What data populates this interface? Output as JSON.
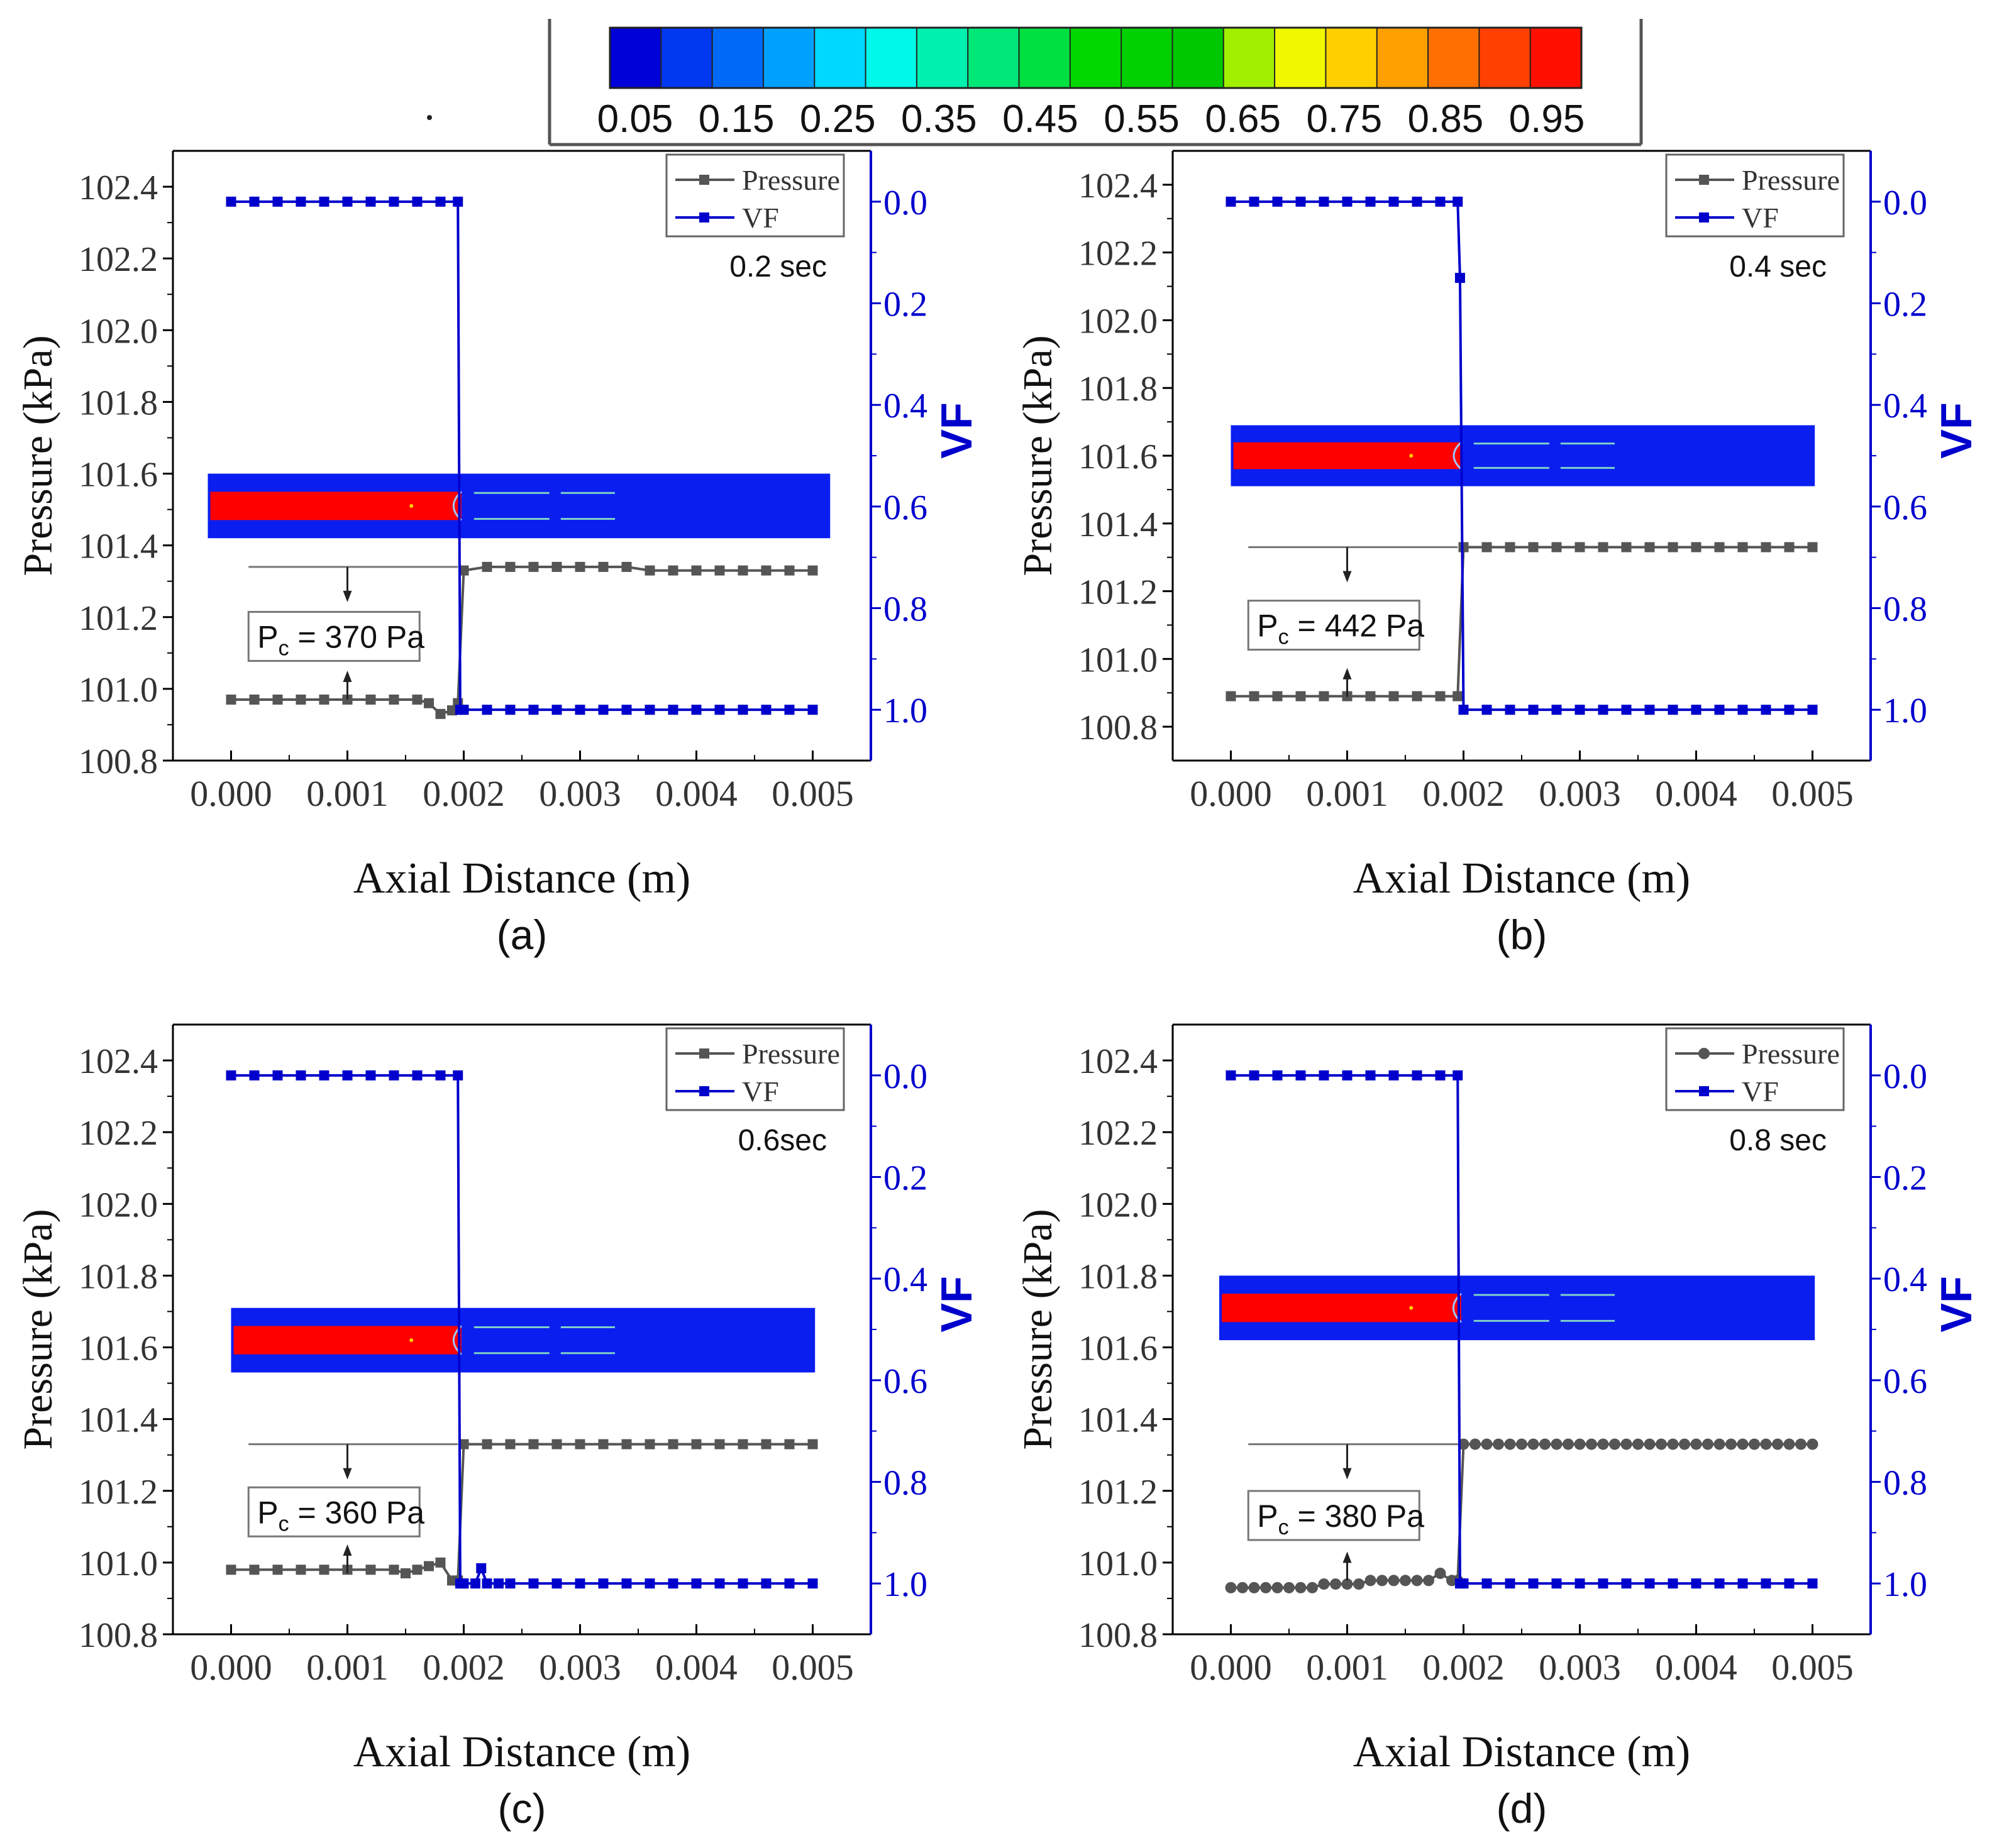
{
  "colorbar": {
    "labels": [
      "0.05",
      "0.15",
      "0.25",
      "0.35",
      "0.45",
      "0.55",
      "0.65",
      "0.75",
      "0.85",
      "0.95"
    ],
    "colors": [
      "#0000d8",
      "#0038f0",
      "#006af8",
      "#00a0ff",
      "#00d8ff",
      "#00f8e8",
      "#00f0b0",
      "#00e878",
      "#00e040",
      "#00d800",
      "#00d000",
      "#00c800",
      "#a0f000",
      "#f0f800",
      "#ffd000",
      "#ffa000",
      "#ff7000",
      "#ff4000",
      "#ff1000"
    ]
  },
  "colors": {
    "pressure": "#555555",
    "vf": "#0000cc",
    "liquid": "#0a1ef0",
    "vapor": "#ff0000",
    "axis": "#000000"
  },
  "chart_data": [
    {
      "type": "line",
      "panel_label": "(a)",
      "time_label": "0.2 sec",
      "xlabel": "Axial Distance (m)",
      "ylabel": "Pressure (kPa)",
      "y2label": "VF",
      "xlim": [
        -0.0005,
        0.0055
      ],
      "ylim": [
        100.8,
        102.5
      ],
      "y2lim": [
        -0.1,
        1.1
      ],
      "x_ticks": [
        "0.000",
        "0.001",
        "0.002",
        "0.003",
        "0.004",
        "0.005"
      ],
      "y_ticks": [
        "100.8",
        "101.0",
        "101.2",
        "101.4",
        "101.6",
        "101.8",
        "102.0",
        "102.2",
        "102.4"
      ],
      "y2_ticks": [
        "0.0",
        "0.2",
        "0.4",
        "0.6",
        "0.8",
        "1.0"
      ],
      "legend": [
        "Pressure",
        "VF"
      ],
      "marker": "square",
      "annotation": {
        "prefix": "P",
        "subscript": "c",
        "suffix": " = 370 Pa"
      },
      "pc_kpa": 0.37,
      "inset": {
        "y_center": 101.51,
        "height_kpa": 0.18,
        "x_start": -0.0002,
        "x_end": 0.00515
      },
      "series": [
        {
          "name": "Pressure",
          "x": [
            0,
            0.0002,
            0.0004,
            0.0006,
            0.0008,
            0.001,
            0.0012,
            0.0014,
            0.0016,
            0.0017,
            0.0018,
            0.0019,
            0.00195,
            0.002,
            0.0022,
            0.0024,
            0.0026,
            0.0028,
            0.003,
            0.0032,
            0.0034,
            0.0036,
            0.0038,
            0.004,
            0.0042,
            0.0044,
            0.0046,
            0.0048,
            0.005
          ],
          "values": [
            100.97,
            100.97,
            100.97,
            100.97,
            100.97,
            100.97,
            100.97,
            100.97,
            100.97,
            100.96,
            100.93,
            100.94,
            100.96,
            101.33,
            101.34,
            101.34,
            101.34,
            101.34,
            101.34,
            101.34,
            101.34,
            101.33,
            101.33,
            101.33,
            101.33,
            101.33,
            101.33,
            101.33,
            101.33
          ]
        },
        {
          "name": "VF",
          "x": [
            0,
            0.0002,
            0.0004,
            0.0006,
            0.0008,
            0.001,
            0.0012,
            0.0014,
            0.0016,
            0.0018,
            0.00195,
            0.00197,
            0.002,
            0.0022,
            0.0024,
            0.0026,
            0.0028,
            0.003,
            0.0032,
            0.0034,
            0.0036,
            0.0038,
            0.004,
            0.0042,
            0.0044,
            0.0046,
            0.0048,
            0.005
          ],
          "values": [
            0,
            0,
            0,
            0,
            0,
            0,
            0,
            0,
            0,
            0,
            0,
            1,
            1,
            1,
            1,
            1,
            1,
            1,
            1,
            1,
            1,
            1,
            1,
            1,
            1,
            1,
            1,
            1
          ]
        }
      ]
    },
    {
      "type": "line",
      "panel_label": "(b)",
      "time_label": "0.4 sec",
      "xlabel": "Axial Distance (m)",
      "ylabel": "Pressure (kPa)",
      "y2label": "VF",
      "xlim": [
        -0.0005,
        0.0055
      ],
      "ylim": [
        100.7,
        102.5
      ],
      "y2lim": [
        -0.1,
        1.1
      ],
      "x_ticks": [
        "0.000",
        "0.001",
        "0.002",
        "0.003",
        "0.004",
        "0.005"
      ],
      "y_ticks": [
        "100.8",
        "101.0",
        "101.2",
        "101.4",
        "101.6",
        "101.8",
        "102.0",
        "102.2",
        "102.4"
      ],
      "y2_ticks": [
        "0.0",
        "0.2",
        "0.4",
        "0.6",
        "0.8",
        "1.0"
      ],
      "legend": [
        "Pressure",
        "VF"
      ],
      "marker": "square",
      "annotation": {
        "prefix": "P",
        "subscript": "c",
        "suffix": " = 442 Pa"
      },
      "pc_kpa": 0.442,
      "inset": {
        "y_center": 101.6,
        "height_kpa": 0.18,
        "x_start": 0.0,
        "x_end": 0.00502
      },
      "series": [
        {
          "name": "Pressure",
          "x": [
            0,
            0.0002,
            0.0004,
            0.0006,
            0.0008,
            0.001,
            0.0012,
            0.0014,
            0.0016,
            0.0018,
            0.00195,
            0.002,
            0.0022,
            0.0024,
            0.0026,
            0.0028,
            0.003,
            0.0032,
            0.0034,
            0.0036,
            0.0038,
            0.004,
            0.0042,
            0.0044,
            0.0046,
            0.0048,
            0.005
          ],
          "values": [
            100.89,
            100.89,
            100.89,
            100.89,
            100.89,
            100.89,
            100.89,
            100.89,
            100.89,
            100.89,
            100.89,
            101.33,
            101.33,
            101.33,
            101.33,
            101.33,
            101.33,
            101.33,
            101.33,
            101.33,
            101.33,
            101.33,
            101.33,
            101.33,
            101.33,
            101.33,
            101.33
          ]
        },
        {
          "name": "VF",
          "x": [
            0,
            0.0002,
            0.0004,
            0.0006,
            0.0008,
            0.001,
            0.0012,
            0.0014,
            0.0016,
            0.0018,
            0.00195,
            0.00197,
            0.002,
            0.0022,
            0.0024,
            0.0026,
            0.0028,
            0.003,
            0.0032,
            0.0034,
            0.0036,
            0.0038,
            0.004,
            0.0042,
            0.0044,
            0.0046,
            0.0048,
            0.005
          ],
          "values": [
            0,
            0,
            0,
            0,
            0,
            0,
            0,
            0,
            0,
            0,
            0,
            0.15,
            1,
            1,
            1,
            1,
            1,
            1,
            1,
            1,
            1,
            1,
            1,
            1,
            1,
            1,
            1,
            1
          ]
        }
      ]
    },
    {
      "type": "line",
      "panel_label": "(c)",
      "time_label": "0.6sec",
      "xlabel": "Axial Distance (m)",
      "ylabel": "Pressure (kPa)",
      "y2label": "VF",
      "xlim": [
        -0.0005,
        0.0055
      ],
      "ylim": [
        100.8,
        102.5
      ],
      "y2lim": [
        -0.1,
        1.1
      ],
      "x_ticks": [
        "0.000",
        "0.001",
        "0.002",
        "0.003",
        "0.004",
        "0.005"
      ],
      "y_ticks": [
        "100.8",
        "101.0",
        "101.2",
        "101.4",
        "101.6",
        "101.8",
        "102.0",
        "102.2",
        "102.4"
      ],
      "y2_ticks": [
        "0.0",
        "0.2",
        "0.4",
        "0.6",
        "0.8",
        "1.0"
      ],
      "legend": [
        "Pressure",
        "VF"
      ],
      "marker": "square",
      "annotation": {
        "prefix": "P",
        "subscript": "c",
        "suffix": " = 360 Pa"
      },
      "pc_kpa": 0.36,
      "inset": {
        "y_center": 101.62,
        "height_kpa": 0.18,
        "x_start": 0.0,
        "x_end": 0.00502
      },
      "series": [
        {
          "name": "Pressure",
          "x": [
            0,
            0.0002,
            0.0004,
            0.0006,
            0.0008,
            0.001,
            0.0012,
            0.0014,
            0.0015,
            0.0016,
            0.0017,
            0.0018,
            0.0019,
            0.00195,
            0.002,
            0.0022,
            0.0024,
            0.0026,
            0.0028,
            0.003,
            0.0032,
            0.0034,
            0.0036,
            0.0038,
            0.004,
            0.0042,
            0.0044,
            0.0046,
            0.0048,
            0.005
          ],
          "values": [
            100.98,
            100.98,
            100.98,
            100.98,
            100.98,
            100.98,
            100.98,
            100.98,
            100.97,
            100.98,
            100.99,
            101.0,
            100.95,
            100.95,
            101.33,
            101.33,
            101.33,
            101.33,
            101.33,
            101.33,
            101.33,
            101.33,
            101.33,
            101.33,
            101.33,
            101.33,
            101.33,
            101.33,
            101.33,
            101.33
          ]
        },
        {
          "name": "VF",
          "x": [
            0,
            0.0002,
            0.0004,
            0.0006,
            0.0008,
            0.001,
            0.0012,
            0.0014,
            0.0016,
            0.0018,
            0.00195,
            0.00197,
            0.002,
            0.0021,
            0.00215,
            0.0022,
            0.0023,
            0.0024,
            0.0026,
            0.0028,
            0.003,
            0.0032,
            0.0034,
            0.0036,
            0.0038,
            0.004,
            0.0042,
            0.0044,
            0.0046,
            0.0048,
            0.005
          ],
          "values": [
            0,
            0,
            0,
            0,
            0,
            0,
            0,
            0,
            0,
            0,
            0,
            1,
            1,
            1.0,
            0.97,
            1.0,
            1.0,
            1,
            1,
            1,
            1,
            1,
            1,
            1,
            1,
            1,
            1,
            1,
            1,
            1,
            1
          ]
        }
      ]
    },
    {
      "type": "line",
      "panel_label": "(d)",
      "time_label": "0.8 sec",
      "xlabel": "Axial Distance (m)",
      "ylabel": "Pressure (kPa)",
      "y2label": "VF",
      "xlim": [
        -0.0005,
        0.0055
      ],
      "ylim": [
        100.8,
        102.5
      ],
      "y2lim": [
        -0.1,
        1.1
      ],
      "x_ticks": [
        "0.000",
        "0.001",
        "0.002",
        "0.003",
        "0.004",
        "0.005"
      ],
      "y_ticks": [
        "100.8",
        "101.0",
        "101.2",
        "101.4",
        "101.6",
        "101.8",
        "102.0",
        "102.2",
        "102.4"
      ],
      "y2_ticks": [
        "0.0",
        "0.2",
        "0.4",
        "0.6",
        "0.8",
        "1.0"
      ],
      "legend": [
        "Pressure",
        "VF"
      ],
      "marker": "circle",
      "annotation": {
        "prefix": "P",
        "subscript": "c",
        "suffix": " = 380 Pa"
      },
      "pc_kpa": 0.38,
      "inset": {
        "y_center": 101.71,
        "height_kpa": 0.18,
        "x_start": -0.0001,
        "x_end": 0.00502
      },
      "series": [
        {
          "name": "Pressure",
          "x": [
            0,
            0.0001,
            0.0002,
            0.0003,
            0.0004,
            0.0005,
            0.0006,
            0.0007,
            0.0008,
            0.0009,
            0.001,
            0.0011,
            0.0012,
            0.0013,
            0.0014,
            0.0015,
            0.0016,
            0.0017,
            0.0018,
            0.0019,
            0.00195,
            0.002,
            0.0021,
            0.0022,
            0.0023,
            0.0024,
            0.0025,
            0.0026,
            0.0027,
            0.0028,
            0.0029,
            0.003,
            0.0031,
            0.0032,
            0.0033,
            0.0034,
            0.0035,
            0.0036,
            0.0037,
            0.0038,
            0.0039,
            0.004,
            0.0041,
            0.0042,
            0.0043,
            0.0044,
            0.0045,
            0.0046,
            0.0047,
            0.0048,
            0.0049,
            0.005
          ],
          "values": [
            100.93,
            100.93,
            100.93,
            100.93,
            100.93,
            100.93,
            100.93,
            100.93,
            100.94,
            100.94,
            100.94,
            100.94,
            100.95,
            100.95,
            100.95,
            100.95,
            100.95,
            100.95,
            100.97,
            100.95,
            100.95,
            101.33,
            101.33,
            101.33,
            101.33,
            101.33,
            101.33,
            101.33,
            101.33,
            101.33,
            101.33,
            101.33,
            101.33,
            101.33,
            101.33,
            101.33,
            101.33,
            101.33,
            101.33,
            101.33,
            101.33,
            101.33,
            101.33,
            101.33,
            101.33,
            101.33,
            101.33,
            101.33,
            101.33,
            101.33,
            101.33,
            101.33
          ]
        },
        {
          "name": "VF",
          "x": [
            0,
            0.0002,
            0.0004,
            0.0006,
            0.0008,
            0.001,
            0.0012,
            0.0014,
            0.0016,
            0.0018,
            0.00195,
            0.00197,
            0.002,
            0.0022,
            0.0024,
            0.0026,
            0.0028,
            0.003,
            0.0032,
            0.0034,
            0.0036,
            0.0038,
            0.004,
            0.0042,
            0.0044,
            0.0046,
            0.0048,
            0.005
          ],
          "values": [
            0,
            0,
            0,
            0,
            0,
            0,
            0,
            0,
            0,
            0,
            0,
            1,
            1,
            1,
            1,
            1,
            1,
            1,
            1,
            1,
            1,
            1,
            1,
            1,
            1,
            1,
            1,
            1
          ]
        }
      ]
    }
  ]
}
